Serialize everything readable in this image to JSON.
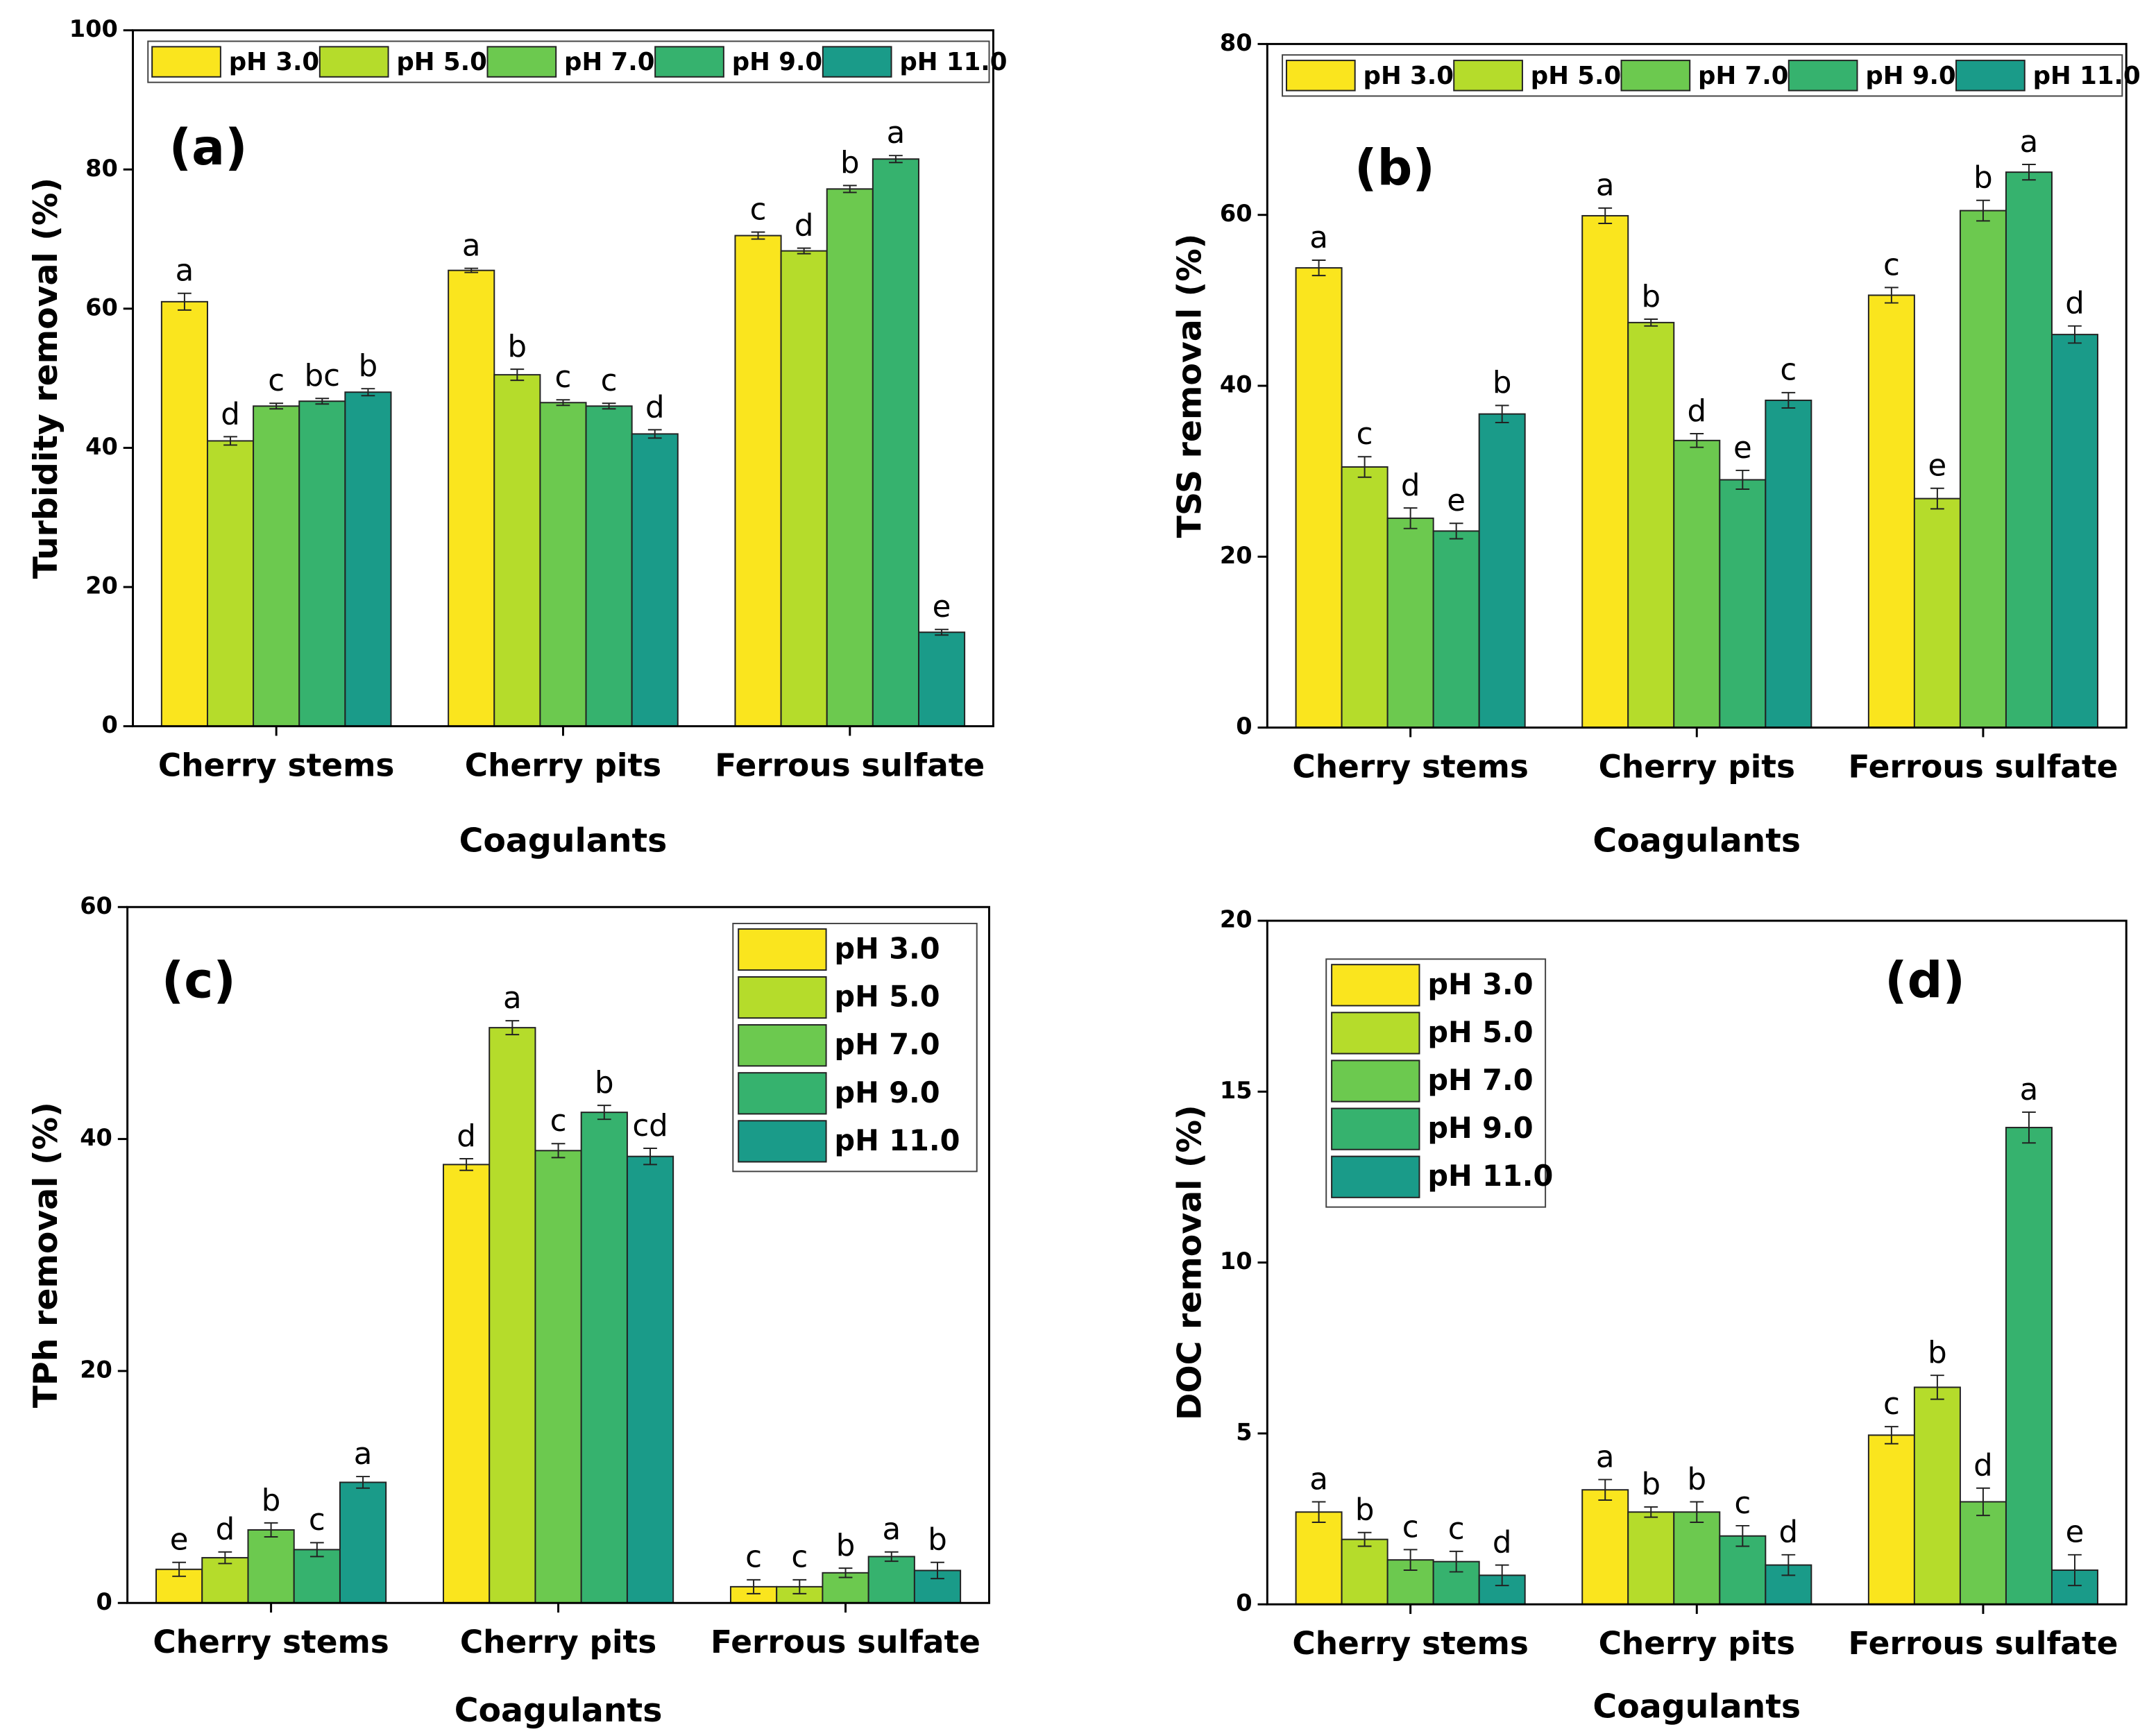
{
  "chart_data": [
    {
      "type": "bar",
      "label": "(a)",
      "y_label": "Turbidity removal (%)",
      "x_label": "Coagulants",
      "categories": [
        "Cherry stems",
        "Cherry pits",
        "Ferrous sulfate"
      ],
      "ylim": [
        0,
        100
      ],
      "yticks": [
        0,
        20,
        40,
        60,
        80,
        100
      ],
      "legend": "top",
      "series": [
        {
          "name": "pH 3.0",
          "color": "#fae51e",
          "values": [
            61,
            65.5,
            70.5
          ],
          "errors": [
            1.2,
            0.3,
            0.5
          ],
          "labels": [
            "a",
            "a",
            "c"
          ]
        },
        {
          "name": "pH 5.0",
          "color": "#b5dc2b",
          "values": [
            41,
            50.5,
            68.3
          ],
          "errors": [
            0.6,
            0.8,
            0.4
          ],
          "labels": [
            "d",
            "b",
            "d"
          ]
        },
        {
          "name": "pH 7.0",
          "color": "#6cc94f",
          "values": [
            46,
            46.5,
            77.2
          ],
          "errors": [
            0.4,
            0.4,
            0.5
          ],
          "labels": [
            "c",
            "c",
            "b"
          ]
        },
        {
          "name": "pH 9.0",
          "color": "#36b26e",
          "values": [
            46.7,
            46,
            81.5
          ],
          "errors": [
            0.4,
            0.4,
            0.5
          ],
          "labels": [
            "bc",
            "c",
            "a"
          ]
        },
        {
          "name": "pH 11.0",
          "color": "#1a9b89",
          "values": [
            48,
            42,
            13.5
          ],
          "errors": [
            0.5,
            0.6,
            0.4
          ],
          "labels": [
            "b",
            "d",
            "e"
          ]
        }
      ]
    },
    {
      "type": "bar",
      "label": "(b)",
      "y_label": "TSS removal (%)",
      "x_label": "Coagulants",
      "categories": [
        "Cherry stems",
        "Cherry pits",
        "Ferrous sulfate"
      ],
      "ylim": [
        0,
        80
      ],
      "yticks": [
        0,
        20,
        40,
        60,
        80
      ],
      "legend": "top",
      "series": [
        {
          "name": "pH 3.0",
          "color": "#fae51e",
          "values": [
            53.8,
            59.9,
            50.6
          ],
          "errors": [
            0.9,
            0.9,
            0.9
          ],
          "labels": [
            "a",
            "a",
            "c"
          ]
        },
        {
          "name": "pH 5.0",
          "color": "#b5dc2b",
          "values": [
            30.5,
            47.4,
            26.8
          ],
          "errors": [
            1.2,
            0.4,
            1.2
          ],
          "labels": [
            "c",
            "b",
            "e"
          ]
        },
        {
          "name": "pH 7.0",
          "color": "#6cc94f",
          "values": [
            24.5,
            33.6,
            60.5
          ],
          "errors": [
            1.2,
            0.8,
            1.2
          ],
          "labels": [
            "d",
            "d",
            "b"
          ]
        },
        {
          "name": "pH 9.0",
          "color": "#36b26e",
          "values": [
            23,
            29,
            65
          ],
          "errors": [
            0.9,
            1.1,
            0.9
          ],
          "labels": [
            "e",
            "e",
            "a"
          ]
        },
        {
          "name": "pH 11.0",
          "color": "#1a9b89",
          "values": [
            36.7,
            38.3,
            46
          ],
          "errors": [
            1,
            0.9,
            1
          ],
          "labels": [
            "b",
            "c",
            "d"
          ]
        }
      ]
    },
    {
      "type": "bar",
      "label": "(c)",
      "y_label": "TPh removal (%)",
      "x_label": "Coagulants",
      "categories": [
        "Cherry stems",
        "Cherry pits",
        "Ferrous sulfate"
      ],
      "ylim": [
        0,
        60
      ],
      "yticks": [
        0,
        20,
        40,
        60
      ],
      "legend": "upper right",
      "series": [
        {
          "name": "pH 3.0",
          "color": "#fae51e",
          "values": [
            2.9,
            37.8,
            1.4
          ],
          "errors": [
            0.6,
            0.5,
            0.6
          ],
          "labels": [
            "e",
            "d",
            "c"
          ]
        },
        {
          "name": "pH 5.0",
          "color": "#b5dc2b",
          "values": [
            3.9,
            49.6,
            1.4
          ],
          "errors": [
            0.5,
            0.6,
            0.6
          ],
          "labels": [
            "d",
            "a",
            "c"
          ]
        },
        {
          "name": "pH 7.0",
          "color": "#6cc94f",
          "values": [
            6.3,
            39,
            2.6
          ],
          "errors": [
            0.6,
            0.6,
            0.4
          ],
          "labels": [
            "b",
            "c",
            "b"
          ]
        },
        {
          "name": "pH 9.0",
          "color": "#36b26e",
          "values": [
            4.6,
            42.3,
            4
          ],
          "errors": [
            0.6,
            0.6,
            0.4
          ],
          "labels": [
            "c",
            "b",
            "a"
          ]
        },
        {
          "name": "pH 11.0",
          "color": "#1a9b89",
          "values": [
            10.4,
            38.5,
            2.8
          ],
          "errors": [
            0.5,
            0.7,
            0.7
          ],
          "labels": [
            "a",
            "cd",
            "b"
          ]
        }
      ]
    },
    {
      "type": "bar",
      "label": "(d)",
      "y_label": "DOC removal (%)",
      "x_label": "Coagulants",
      "categories": [
        "Cherry stems",
        "Cherry pits",
        "Ferrous sulfate"
      ],
      "ylim": [
        0,
        20
      ],
      "yticks": [
        0,
        5,
        10,
        15,
        20
      ],
      "legend": "upper left",
      "series": [
        {
          "name": "pH 3.0",
          "color": "#fae51e",
          "values": [
            2.7,
            3.35,
            4.95
          ],
          "errors": [
            0.3,
            0.3,
            0.25
          ],
          "labels": [
            "a",
            "a",
            "c"
          ]
        },
        {
          "name": "pH 5.0",
          "color": "#b5dc2b",
          "values": [
            1.9,
            2.7,
            6.35
          ],
          "errors": [
            0.2,
            0.15,
            0.35
          ],
          "labels": [
            "b",
            "b",
            "b"
          ]
        },
        {
          "name": "pH 7.0",
          "color": "#6cc94f",
          "values": [
            1.3,
            2.7,
            3
          ],
          "errors": [
            0.3,
            0.3,
            0.4
          ],
          "labels": [
            "c",
            "b",
            "d"
          ]
        },
        {
          "name": "pH 9.0",
          "color": "#36b26e",
          "values": [
            1.25,
            2,
            13.95
          ],
          "errors": [
            0.3,
            0.3,
            0.45
          ],
          "labels": [
            "c",
            "c",
            "a"
          ]
        },
        {
          "name": "pH 11.0",
          "color": "#1a9b89",
          "values": [
            0.85,
            1.15,
            1
          ],
          "errors": [
            0.3,
            0.3,
            0.45
          ],
          "labels": [
            "d",
            "d",
            "e"
          ]
        }
      ]
    }
  ]
}
